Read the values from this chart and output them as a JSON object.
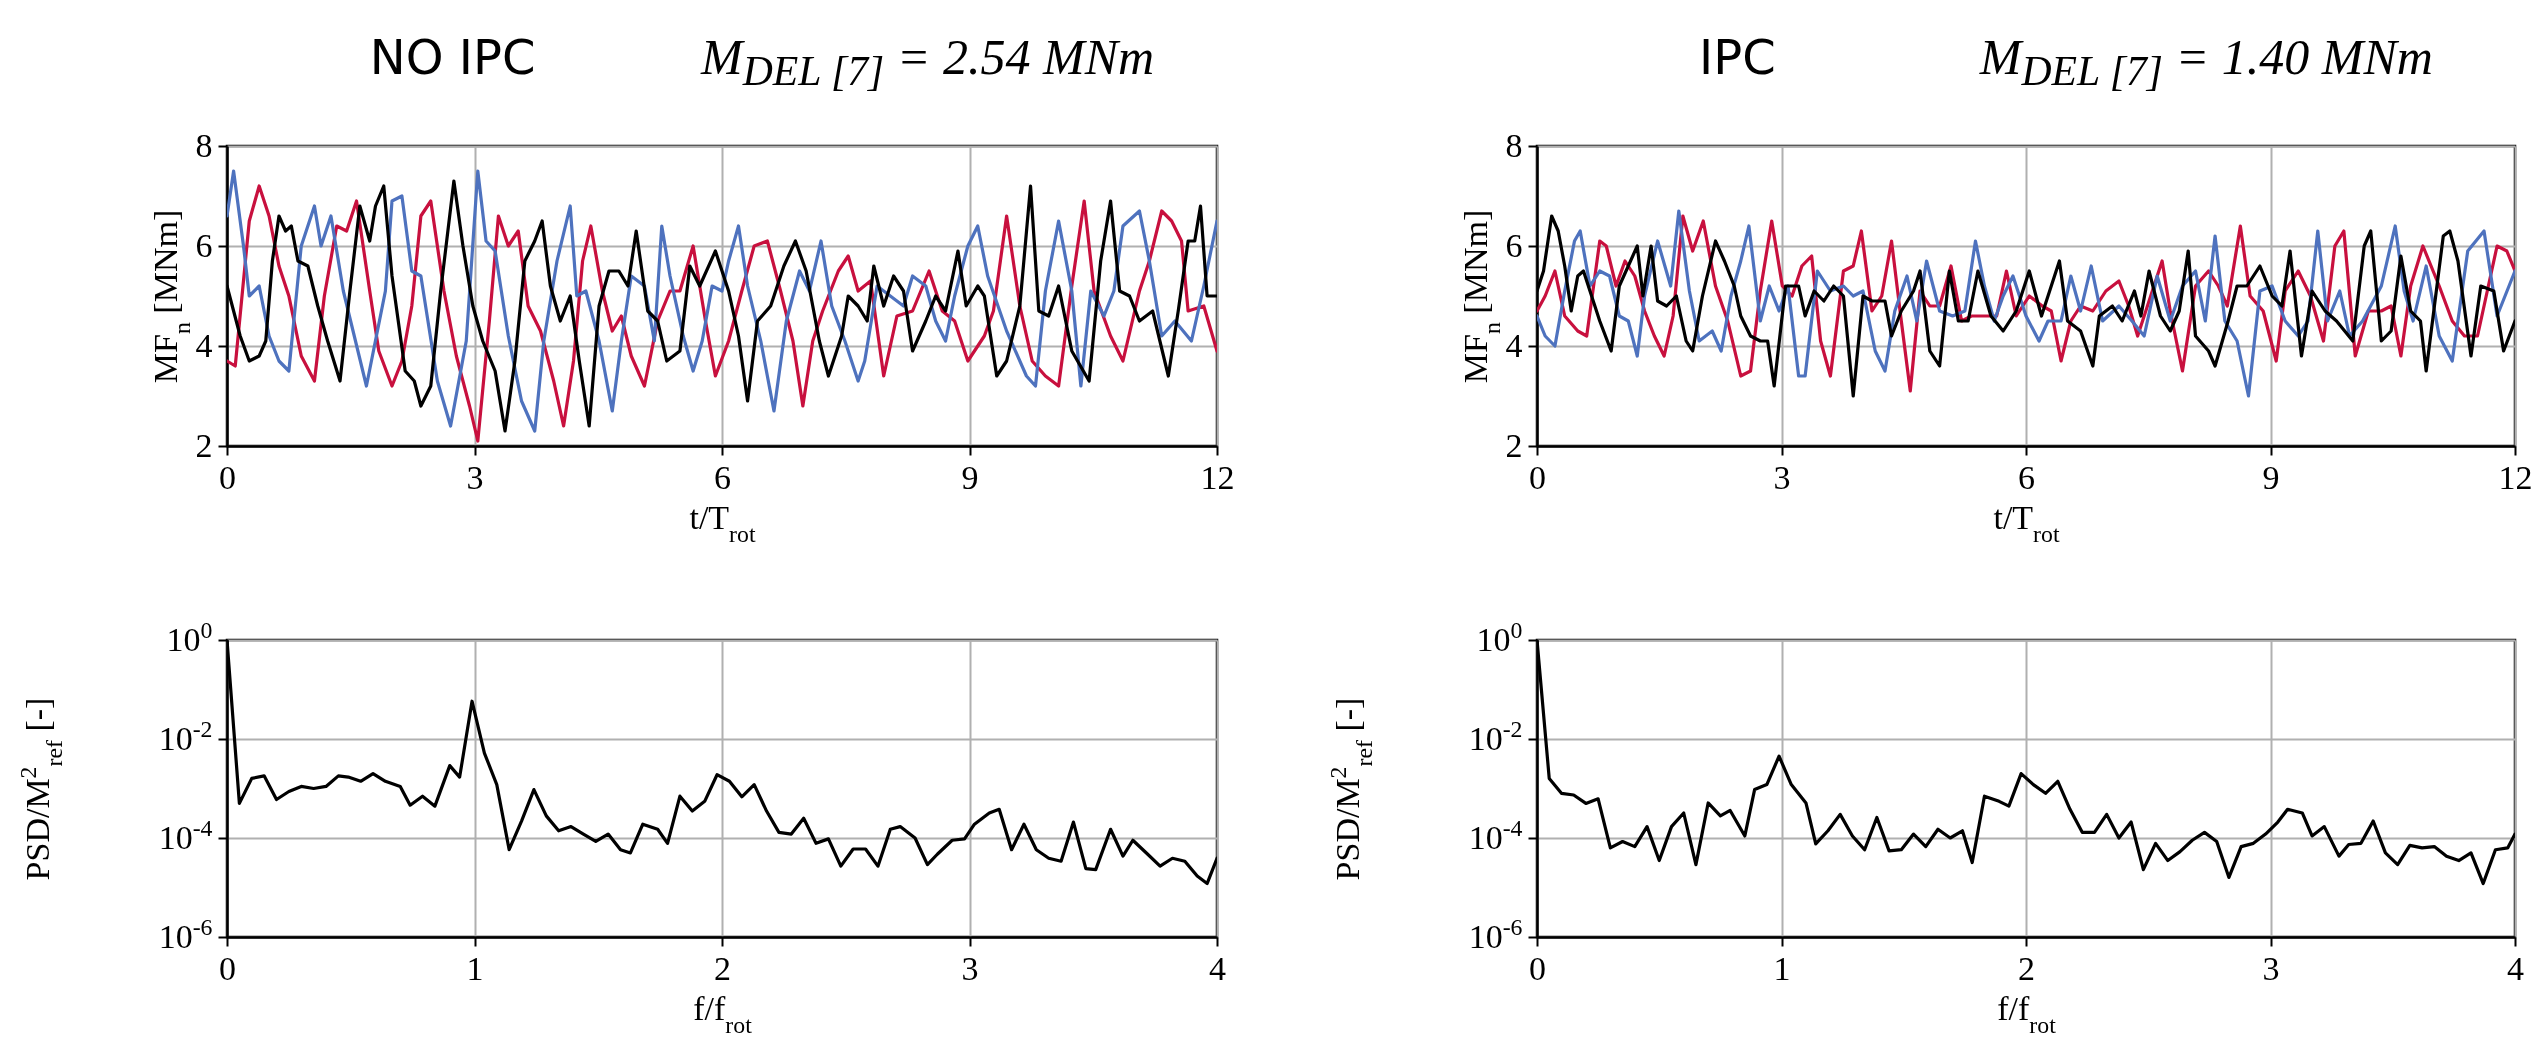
{
  "chart_data": [
    {
      "type": "line",
      "title": "NO IPC",
      "subtitle": "M$_{DEL [7]}$ = 2.54 MNm",
      "xlabel": "t/T$_{rot}$",
      "ylabel": "MF$_{n}$ [MNm]",
      "xlim": [
        0,
        12
      ],
      "ylim": [
        2,
        8
      ],
      "xticks": [
        0,
        3,
        6,
        9,
        12
      ],
      "yticks": [
        2,
        4,
        6,
        8
      ],
      "grid": true,
      "series": [
        {
          "color": "#c8103e",
          "x": [
            0,
            0.1,
            0.27,
            0.39,
            0.51,
            0.63,
            0.75,
            0.9,
            1.06,
            1.18,
            1.33,
            1.45,
            1.57,
            1.73,
            1.84,
            2.0,
            2.12,
            2.24,
            2.35,
            2.47,
            2.63,
            2.78,
            2.94,
            3.04,
            3.18,
            3.29,
            3.41,
            3.53,
            3.65,
            3.8,
            3.96,
            4.08,
            4.2,
            4.31,
            4.41,
            4.55,
            4.67,
            4.78,
            4.9,
            5.06,
            5.22,
            5.37,
            5.49,
            5.65,
            5.8,
            5.92,
            6.08,
            6.24,
            6.39,
            6.55,
            6.71,
            6.86,
            6.98,
            7.1,
            7.22,
            7.41,
            7.53,
            7.65,
            7.8,
            7.96,
            8.12,
            8.31,
            8.51,
            8.67,
            8.82,
            8.98,
            9.18,
            9.29,
            9.45,
            9.61,
            9.76,
            9.92,
            10.08,
            10.24,
            10.39,
            10.51,
            10.71,
            10.86,
            11.06,
            11.18,
            11.33,
            11.45,
            11.57,
            11.65,
            11.84,
            12.0
          ],
          "values": [
            3.7,
            3.6,
            6.5,
            7.2,
            6.6,
            5.6,
            5.0,
            3.8,
            3.3,
            5.0,
            6.4,
            6.3,
            6.9,
            5.1,
            3.9,
            3.2,
            3.7,
            4.8,
            6.6,
            6.9,
            5.1,
            3.8,
            2.8,
            2.1,
            4.5,
            6.6,
            6.0,
            6.3,
            4.8,
            4.3,
            3.3,
            2.4,
            3.7,
            5.7,
            6.4,
            5.1,
            4.3,
            4.6,
            3.8,
            3.2,
            4.5,
            5.1,
            5.1,
            6.0,
            4.5,
            3.4,
            4.1,
            5.1,
            6.0,
            6.1,
            5.1,
            4.1,
            2.8,
            4.1,
            4.7,
            5.5,
            5.8,
            5.1,
            5.3,
            3.4,
            4.6,
            4.7,
            5.5,
            4.7,
            4.5,
            3.7,
            4.2,
            4.7,
            6.6,
            4.8,
            3.7,
            3.4,
            3.2,
            5.2,
            6.9,
            5.1,
            4.2,
            3.7,
            5.1,
            5.7,
            6.7,
            6.5,
            6.1,
            4.7,
            4.8,
            3.9
          ]
        },
        {
          "color": "#4e72be",
          "x": [
            0,
            0.08,
            0.2,
            0.27,
            0.39,
            0.51,
            0.63,
            0.75,
            0.9,
            1.06,
            1.14,
            1.26,
            1.41,
            1.69,
            1.92,
            2.0,
            2.12,
            2.24,
            2.35,
            2.55,
            2.71,
            2.9,
            3.04,
            3.14,
            3.25,
            3.41,
            3.57,
            3.73,
            3.84,
            4.0,
            4.16,
            4.24,
            4.35,
            4.51,
            4.67,
            4.78,
            4.9,
            5.06,
            5.18,
            5.27,
            5.37,
            5.53,
            5.65,
            5.76,
            5.88,
            6.0,
            6.08,
            6.2,
            6.31,
            6.47,
            6.63,
            6.78,
            6.94,
            7.06,
            7.2,
            7.33,
            7.49,
            7.65,
            7.73,
            7.88,
            8.04,
            8.2,
            8.31,
            8.47,
            8.59,
            8.71,
            8.82,
            8.98,
            9.1,
            9.22,
            9.45,
            9.69,
            9.8,
            9.92,
            10.08,
            10.24,
            10.35,
            10.47,
            10.63,
            10.75,
            10.86,
            11.06,
            11.18,
            11.33,
            11.49,
            11.69,
            11.84,
            12.0
          ],
          "values": [
            6.6,
            7.5,
            6.0,
            5.0,
            5.2,
            4.2,
            3.7,
            3.5,
            6.0,
            6.8,
            6.0,
            6.6,
            5.1,
            3.2,
            5.1,
            6.9,
            7.0,
            5.5,
            5.4,
            3.3,
            2.4,
            4.1,
            7.5,
            6.1,
            5.9,
            4.2,
            2.9,
            2.3,
            4.1,
            5.7,
            6.8,
            5.0,
            5.1,
            4.1,
            2.7,
            4.1,
            5.4,
            5.2,
            4.1,
            6.4,
            5.4,
            4.2,
            3.5,
            4.1,
            5.2,
            5.1,
            5.7,
            6.4,
            5.2,
            4.1,
            2.7,
            4.5,
            5.5,
            5.1,
            6.1,
            4.8,
            4.1,
            3.3,
            3.7,
            5.2,
            5.0,
            4.8,
            5.4,
            5.2,
            4.5,
            4.1,
            5.0,
            6.0,
            6.4,
            5.4,
            4.3,
            3.4,
            3.2,
            5.1,
            6.5,
            5.1,
            3.2,
            5.1,
            4.6,
            5.1,
            6.4,
            6.7,
            5.7,
            4.2,
            4.5,
            4.1,
            5.2,
            6.5
          ]
        },
        {
          "color": "#000000",
          "x": [
            0,
            0.08,
            0.16,
            0.27,
            0.39,
            0.47,
            0.55,
            0.63,
            0.71,
            0.78,
            0.86,
            0.98,
            1.1,
            1.22,
            1.37,
            1.49,
            1.61,
            1.73,
            1.8,
            1.9,
            2.0,
            2.16,
            2.27,
            2.35,
            2.47,
            2.59,
            2.75,
            2.86,
            2.98,
            3.1,
            3.25,
            3.37,
            3.49,
            3.61,
            3.73,
            3.82,
            3.92,
            4.04,
            4.16,
            4.27,
            4.39,
            4.51,
            4.63,
            4.75,
            4.86,
            4.96,
            5.1,
            5.22,
            5.33,
            5.49,
            5.61,
            5.73,
            5.92,
            6.08,
            6.2,
            6.31,
            6.43,
            6.59,
            6.75,
            6.89,
            7.02,
            7.18,
            7.29,
            7.45,
            7.53,
            7.65,
            7.76,
            7.84,
            7.96,
            8.08,
            8.2,
            8.31,
            8.47,
            8.59,
            8.71,
            8.86,
            8.96,
            9.1,
            9.18,
            9.33,
            9.45,
            9.61,
            9.74,
            9.84,
            9.96,
            10.08,
            10.24,
            10.45,
            10.59,
            10.71,
            10.82,
            10.94,
            11.06,
            11.22,
            11.41,
            11.53,
            11.65,
            11.73,
            11.8,
            11.88,
            12.0
          ],
          "values": [
            5.2,
            4.7,
            4.2,
            3.7,
            3.8,
            4.1,
            5.7,
            6.6,
            6.3,
            6.4,
            5.7,
            5.6,
            4.8,
            4.1,
            3.3,
            5.1,
            6.8,
            6.1,
            6.8,
            7.2,
            5.4,
            3.5,
            3.3,
            2.8,
            3.2,
            5.1,
            7.3,
            6.0,
            4.8,
            4.1,
            3.5,
            2.3,
            3.7,
            5.7,
            6.1,
            6.5,
            5.2,
            4.5,
            5.0,
            3.7,
            2.4,
            4.8,
            5.5,
            5.5,
            5.2,
            6.3,
            4.7,
            4.5,
            3.7,
            3.9,
            5.6,
            5.2,
            5.9,
            5.1,
            4.2,
            2.9,
            4.5,
            4.8,
            5.6,
            6.1,
            5.5,
            4.1,
            3.4,
            4.2,
            5.0,
            4.8,
            4.5,
            5.6,
            4.8,
            5.4,
            5.1,
            3.9,
            4.5,
            5.0,
            4.7,
            5.9,
            4.8,
            5.2,
            5.0,
            3.4,
            3.7,
            4.8,
            7.2,
            4.7,
            4.6,
            5.2,
            3.9,
            3.3,
            5.7,
            6.9,
            5.1,
            5.0,
            4.5,
            4.7,
            3.4,
            4.7,
            6.1,
            6.1,
            6.8,
            5.0,
            5.0
          ]
        }
      ]
    },
    {
      "type": "line",
      "title": "IPC",
      "subtitle": "M$_{DEL [7]}$ = 1.40 MNm",
      "xlabel": "t/T$_{rot}$",
      "ylabel": "MF$_{n}$ [MNm]",
      "xlim": [
        0,
        12
      ],
      "ylim": [
        2,
        8
      ],
      "xticks": [
        0,
        3,
        6,
        9,
        12
      ],
      "yticks": [
        2,
        4,
        6,
        8
      ],
      "grid": true,
      "series": [
        {
          "color": "#c8103e",
          "x": [
            0,
            0.1,
            0.22,
            0.34,
            0.5,
            0.61,
            0.77,
            0.85,
            0.97,
            1.08,
            1.2,
            1.32,
            1.44,
            1.56,
            1.67,
            1.79,
            1.91,
            2.04,
            2.19,
            2.34,
            2.5,
            2.62,
            2.74,
            2.88,
            3.01,
            3.13,
            3.25,
            3.37,
            3.48,
            3.6,
            3.76,
            3.88,
            3.98,
            4.11,
            4.23,
            4.35,
            4.47,
            4.58,
            4.7,
            4.82,
            4.94,
            5.08,
            5.21,
            5.33,
            5.49,
            5.64,
            5.76,
            5.88,
            6.04,
            6.2,
            6.31,
            6.43,
            6.55,
            6.67,
            6.82,
            6.98,
            7.14,
            7.26,
            7.37,
            7.53,
            7.67,
            7.77,
            7.92,
            8.08,
            8.24,
            8.36,
            8.47,
            8.63,
            8.75,
            8.91,
            9.07,
            9.18,
            9.34,
            9.49,
            9.65,
            9.79,
            9.9,
            10.04,
            10.2,
            10.36,
            10.48,
            10.6,
            10.72,
            10.87,
            11.07,
            11.23,
            11.38,
            11.54,
            11.66,
            11.78,
            11.9,
            12.0
          ],
          "values": [
            4.7,
            5.0,
            5.5,
            4.6,
            4.3,
            4.2,
            6.1,
            6.0,
            5.2,
            5.7,
            5.4,
            4.7,
            4.2,
            3.8,
            4.6,
            6.6,
            5.9,
            6.5,
            5.2,
            4.5,
            3.4,
            3.5,
            5.1,
            6.5,
            5.2,
            5.0,
            5.6,
            5.8,
            4.1,
            3.4,
            5.5,
            5.6,
            6.3,
            4.7,
            5.0,
            6.1,
            4.5,
            3.1,
            5.1,
            4.8,
            4.8,
            5.6,
            4.5,
            4.6,
            4.6,
            4.6,
            5.5,
            4.6,
            5.0,
            4.8,
            4.7,
            3.7,
            4.5,
            4.8,
            4.7,
            5.1,
            5.3,
            4.8,
            4.2,
            5.0,
            5.7,
            4.7,
            3.5,
            5.2,
            5.5,
            5.2,
            4.8,
            6.4,
            5.0,
            4.7,
            3.7,
            5.1,
            5.5,
            5.0,
            4.1,
            6.0,
            6.3,
            3.8,
            4.7,
            4.7,
            4.8,
            3.8,
            5.2,
            6.0,
            5.2,
            4.5,
            4.2,
            4.2,
            5.1,
            6.0,
            5.9,
            5.5
          ]
        },
        {
          "color": "#4e72be",
          "x": [
            0,
            0.1,
            0.22,
            0.34,
            0.46,
            0.53,
            0.65,
            0.77,
            0.89,
            1.01,
            1.12,
            1.23,
            1.32,
            1.48,
            1.64,
            1.74,
            1.87,
            1.99,
            2.15,
            2.26,
            2.38,
            2.5,
            2.6,
            2.74,
            2.85,
            2.97,
            3.08,
            3.21,
            3.29,
            3.44,
            3.6,
            3.76,
            3.88,
            4.0,
            4.15,
            4.27,
            4.39,
            4.54,
            4.66,
            4.78,
            4.94,
            5.1,
            5.25,
            5.38,
            5.49,
            5.61,
            5.72,
            5.84,
            6.0,
            6.16,
            6.27,
            6.43,
            6.55,
            6.67,
            6.8,
            6.94,
            7.14,
            7.3,
            7.45,
            7.61,
            7.77,
            7.92,
            8.08,
            8.2,
            8.32,
            8.44,
            8.59,
            8.73,
            8.87,
            9.02,
            9.18,
            9.34,
            9.46,
            9.58,
            9.7,
            9.85,
            9.97,
            10.13,
            10.36,
            10.53,
            10.64,
            10.75,
            10.91,
            11.07,
            11.23,
            11.42,
            11.62,
            11.78,
            12.0
          ],
          "values": [
            4.6,
            4.2,
            4.0,
            5.1,
            6.1,
            6.3,
            5.2,
            5.5,
            5.4,
            4.6,
            4.5,
            3.8,
            5.0,
            6.1,
            5.2,
            6.7,
            5.1,
            4.1,
            4.3,
            3.9,
            5.0,
            5.7,
            6.4,
            4.5,
            5.2,
            4.7,
            5.2,
            3.4,
            3.4,
            5.5,
            5.1,
            5.2,
            5.0,
            5.1,
            3.9,
            3.5,
            4.7,
            5.4,
            4.5,
            5.7,
            4.7,
            4.6,
            4.7,
            6.1,
            5.2,
            4.5,
            5.0,
            5.4,
            4.6,
            4.1,
            4.5,
            4.5,
            5.4,
            4.7,
            5.6,
            4.5,
            4.8,
            4.5,
            4.2,
            5.4,
            4.5,
            5.2,
            5.5,
            4.5,
            6.2,
            4.5,
            4.1,
            3.0,
            5.1,
            5.2,
            4.5,
            4.2,
            4.5,
            6.3,
            4.5,
            5.1,
            4.2,
            4.5,
            5.2,
            6.4,
            5.1,
            4.5,
            5.6,
            4.2,
            3.7,
            5.9,
            6.3,
            4.6,
            5.5
          ]
        },
        {
          "color": "#000000",
          "x": [
            0,
            0.08,
            0.18,
            0.26,
            0.34,
            0.42,
            0.5,
            0.57,
            0.65,
            0.77,
            0.91,
            1.01,
            1.12,
            1.23,
            1.3,
            1.4,
            1.48,
            1.59,
            1.71,
            1.83,
            1.91,
            2.03,
            2.19,
            2.3,
            2.42,
            2.5,
            2.62,
            2.74,
            2.83,
            2.91,
            3.05,
            3.21,
            3.29,
            3.4,
            3.52,
            3.64,
            3.76,
            3.88,
            4.0,
            4.11,
            4.27,
            4.35,
            4.47,
            4.62,
            4.7,
            4.82,
            4.94,
            5.06,
            5.17,
            5.29,
            5.41,
            5.57,
            5.72,
            5.88,
            6.04,
            6.19,
            6.31,
            6.41,
            6.51,
            6.67,
            6.82,
            6.9,
            7.06,
            7.18,
            7.33,
            7.41,
            7.51,
            7.65,
            7.77,
            7.88,
            7.99,
            8.08,
            8.24,
            8.32,
            8.48,
            8.59,
            8.71,
            8.87,
            9.02,
            9.14,
            9.24,
            9.38,
            9.51,
            9.67,
            9.81,
            10.01,
            10.15,
            10.23,
            10.36,
            10.48,
            10.6,
            10.72,
            10.84,
            10.91,
            11.12,
            11.2,
            11.3,
            11.46,
            11.58,
            11.74,
            11.86,
            12.0
          ],
          "values": [
            5.1,
            5.5,
            6.6,
            6.3,
            5.6,
            4.7,
            5.4,
            5.5,
            5.1,
            4.5,
            3.9,
            5.2,
            5.6,
            6.0,
            5.0,
            6.0,
            4.9,
            4.8,
            5.0,
            4.1,
            3.9,
            5.0,
            6.1,
            5.7,
            5.2,
            4.6,
            4.2,
            4.1,
            4.1,
            3.2,
            5.2,
            5.2,
            4.6,
            5.1,
            4.9,
            5.2,
            5.0,
            3.0,
            5.0,
            4.9,
            4.9,
            4.2,
            4.7,
            5.1,
            5.5,
            3.9,
            3.6,
            5.5,
            4.5,
            4.5,
            5.5,
            4.6,
            4.3,
            4.7,
            5.5,
            4.6,
            5.2,
            5.7,
            4.5,
            4.3,
            3.6,
            4.6,
            4.8,
            4.5,
            5.1,
            4.6,
            5.5,
            4.6,
            4.3,
            4.7,
            5.9,
            4.2,
            3.9,
            3.6,
            4.5,
            5.2,
            5.2,
            5.6,
            5.0,
            4.8,
            5.9,
            3.8,
            5.1,
            4.7,
            4.5,
            4.1,
            6.0,
            6.3,
            4.1,
            4.3,
            5.8,
            4.7,
            4.5,
            3.5,
            6.2,
            6.3,
            5.7,
            3.8,
            5.2,
            5.1,
            3.9,
            4.5
          ]
        }
      ]
    },
    {
      "type": "line",
      "xlabel": "f/f$_{rot}$",
      "ylabel": "PSD/M$^{2}$$_{ref}$ [-]",
      "xlim": [
        0,
        4
      ],
      "ylim": [
        1e-06,
        1
      ],
      "xticks": [
        0,
        1,
        2,
        3,
        4
      ],
      "yticks": [
        {
          "value": 1,
          "label": "10$^{0}$"
        },
        {
          "value": 0.01,
          "label": "10$^{-2}$"
        },
        {
          "value": 0.0001,
          "label": "10$^{-4}$"
        },
        {
          "value": 1e-06,
          "label": "10$^{-6}$"
        }
      ],
      "log": true,
      "grid": true,
      "series": [
        {
          "color": "#000000",
          "x": [
            0,
            0.05,
            0.1,
            0.15,
            0.2,
            0.25,
            0.3,
            0.35,
            0.4,
            0.45,
            0.49,
            0.54,
            0.59,
            0.64,
            0.7,
            0.74,
            0.79,
            0.84,
            0.9,
            0.94,
            0.99,
            1.04,
            1.09,
            1.14,
            1.19,
            1.24,
            1.29,
            1.34,
            1.39,
            1.44,
            1.49,
            1.54,
            1.59,
            1.63,
            1.68,
            1.74,
            1.78,
            1.83,
            1.88,
            1.93,
            1.98,
            2.03,
            2.08,
            2.13,
            2.18,
            2.23,
            2.28,
            2.33,
            2.38,
            2.43,
            2.48,
            2.53,
            2.58,
            2.63,
            2.68,
            2.72,
            2.78,
            2.83,
            2.87,
            2.93,
            2.98,
            3.02,
            3.08,
            3.12,
            3.17,
            3.22,
            3.27,
            3.32,
            3.37,
            3.42,
            3.47,
            3.51,
            3.57,
            3.62,
            3.66,
            3.72,
            3.77,
            3.82,
            3.87,
            3.92,
            3.96,
            4.0
          ],
          "values": [
            1,
            0.0005,
            0.0016,
            0.0018,
            0.0006,
            0.00087,
            0.0011,
            0.001,
            0.0011,
            0.0018,
            0.0017,
            0.0014,
            0.002,
            0.0014,
            0.0011,
            0.00046,
            0.0007,
            0.00044,
            0.0029,
            0.0017,
            0.058,
            0.0052,
            0.0012,
            5.8e-05,
            0.00022,
            0.00095,
            0.00028,
            0.00014,
            0.00017,
            0.00012,
            8.5e-05,
            0.00012,
            5.8e-05,
            5e-05,
            0.00019,
            0.00015,
            7.8e-05,
            0.0007,
            0.00035,
            0.00055,
            0.0019,
            0.0014,
            0.00068,
            0.0012,
            0.00035,
            0.00013,
            0.00012,
            0.00025,
            7.8e-05,
            9.6e-05,
            2.7e-05,
            6e-05,
            6e-05,
            2.7e-05,
            0.00015,
            0.00017,
            0.0001,
            2.9e-05,
            4.7e-05,
            9e-05,
            9.6e-05,
            0.00019,
            0.00032,
            0.00038,
            5.8e-05,
            0.00019,
            5.8e-05,
            3.9e-05,
            3.4e-05,
            0.00021,
            2.4e-05,
            2.3e-05,
            0.00015,
            4.3e-05,
            9e-05,
            4.7e-05,
            2.7e-05,
            3.9e-05,
            3.4e-05,
            1.7e-05,
            1.2e-05,
            3.9e-05
          ]
        }
      ]
    },
    {
      "type": "line",
      "xlabel": "f/f$_{rot}$",
      "ylabel": "PSD/M$^{2}$$_{ref}$ [-]",
      "xlim": [
        0,
        4
      ],
      "ylim": [
        1e-06,
        1
      ],
      "xticks": [
        0,
        1,
        2,
        3,
        4
      ],
      "yticks": [
        {
          "value": 1,
          "label": "10$^{0}$"
        },
        {
          "value": 0.01,
          "label": "10$^{-2}$"
        },
        {
          "value": 0.0001,
          "label": "10$^{-4}$"
        },
        {
          "value": 1e-06,
          "label": "10$^{-6}$"
        }
      ],
      "log": true,
      "grid": true,
      "series": [
        {
          "color": "#000000",
          "x": [
            0,
            0.05,
            0.1,
            0.15,
            0.2,
            0.25,
            0.3,
            0.35,
            0.4,
            0.45,
            0.5,
            0.55,
            0.6,
            0.65,
            0.7,
            0.75,
            0.79,
            0.85,
            0.89,
            0.94,
            0.99,
            1.04,
            1.1,
            1.14,
            1.19,
            1.24,
            1.29,
            1.34,
            1.39,
            1.44,
            1.49,
            1.54,
            1.59,
            1.64,
            1.69,
            1.74,
            1.78,
            1.83,
            1.89,
            1.93,
            1.98,
            2.03,
            2.08,
            2.13,
            2.18,
            2.23,
            2.28,
            2.33,
            2.38,
            2.43,
            2.48,
            2.53,
            2.58,
            2.63,
            2.68,
            2.73,
            2.78,
            2.83,
            2.88,
            2.93,
            2.98,
            3.03,
            3.07,
            3.13,
            3.17,
            3.22,
            3.28,
            3.32,
            3.37,
            3.42,
            3.47,
            3.52,
            3.57,
            3.62,
            3.67,
            3.72,
            3.77,
            3.82,
            3.87,
            3.92,
            3.97,
            4.0
          ],
          "values": [
            1,
            0.0016,
            0.0008,
            0.00074,
            0.0005,
            0.00062,
            6.3e-05,
            8.5e-05,
            6.7e-05,
            0.00017,
            3.5e-05,
            0.00017,
            0.00032,
            2.9e-05,
            0.00051,
            0.00028,
            0.00036,
            0.00011,
            0.00095,
            0.0012,
            0.0045,
            0.0012,
            0.00051,
            7.6e-05,
            0.00014,
            0.0003,
            0.00011,
            5.8e-05,
            0.00026,
            5.5e-05,
            5.8e-05,
            0.00012,
            6.7e-05,
            0.00015,
            0.0001,
            0.00014,
            3.2e-05,
            0.0007,
            0.00055,
            0.00044,
            0.002,
            0.0012,
            0.0008,
            0.0014,
            0.00038,
            0.00013,
            0.00013,
            0.0003,
            0.0001,
            0.00021,
            2.3e-05,
            7.8e-05,
            3.5e-05,
            5.3e-05,
            9e-05,
            0.00013,
            8.5e-05,
            1.6e-05,
            6.7e-05,
            7.8e-05,
            0.00012,
            0.00021,
            0.00038,
            0.00032,
            0.00011,
            0.00017,
            4.3e-05,
            7.4e-05,
            7.8e-05,
            0.00022,
            5e-05,
            2.9e-05,
            7.1e-05,
            6.3e-05,
            6.7e-05,
            4.3e-05,
            3.5e-05,
            5e-05,
            1.2e-05,
            5.8e-05,
            6.3e-05,
            0.00012
          ]
        }
      ]
    }
  ]
}
